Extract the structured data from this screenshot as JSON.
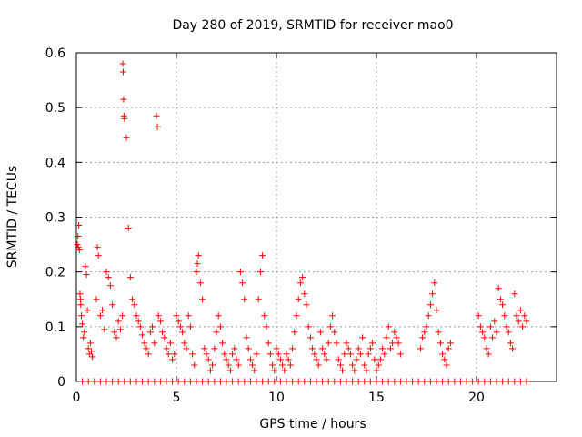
{
  "chart_data": {
    "type": "scatter",
    "title": "Day 280 of 2019, SRMTID for receiver mao0",
    "xlabel": "GPS time / hours",
    "ylabel": "SRMTID / TECUs",
    "xlim": [
      0,
      24
    ],
    "ylim": [
      0,
      0.6
    ],
    "xticks": [
      "0",
      "5",
      "10",
      "15",
      "20"
    ],
    "xtick_values": [
      0,
      5,
      10,
      15,
      20
    ],
    "yticks": [
      "0",
      "0.1",
      "0.2",
      "0.3",
      "0.4",
      "0.5",
      "0.6"
    ],
    "ytick_values": [
      0,
      0.1,
      0.2,
      0.3,
      0.4,
      0.5,
      0.6
    ],
    "grid": true,
    "marker": "+",
    "color": "#ff0000",
    "series": [
      {
        "name": "SRMTID",
        "x": [
          0.05,
          0.08,
          0.1,
          0.12,
          0.15,
          0.18,
          0.2,
          0.22,
          0.25,
          0.3,
          0.35,
          0.4,
          0.45,
          0.5,
          0.55,
          0.6,
          0.65,
          0.7,
          0.75,
          0.8,
          1.0,
          1.05,
          1.1,
          1.2,
          1.3,
          1.4,
          1.5,
          1.6,
          1.7,
          1.8,
          1.9,
          2.0,
          2.1,
          2.2,
          2.3,
          2.32,
          2.34,
          2.36,
          2.38,
          2.4,
          2.5,
          2.6,
          2.7,
          2.8,
          2.9,
          3.0,
          3.1,
          3.2,
          3.3,
          3.4,
          3.5,
          3.6,
          3.7,
          3.8,
          3.9,
          4.0,
          4.05,
          4.1,
          4.2,
          4.3,
          4.4,
          4.5,
          4.6,
          4.7,
          4.8,
          4.9,
          5.0,
          5.1,
          5.2,
          5.3,
          5.4,
          5.5,
          5.6,
          5.7,
          5.8,
          5.9,
          6.0,
          6.05,
          6.1,
          6.2,
          6.3,
          6.4,
          6.5,
          6.6,
          6.7,
          6.8,
          6.9,
          7.0,
          7.1,
          7.2,
          7.3,
          7.4,
          7.5,
          7.6,
          7.7,
          7.8,
          7.9,
          8.0,
          8.1,
          8.2,
          8.3,
          8.4,
          8.5,
          8.6,
          8.7,
          8.8,
          8.9,
          9.0,
          9.1,
          9.2,
          9.3,
          9.4,
          9.5,
          9.6,
          9.7,
          9.8,
          9.9,
          10.0,
          10.1,
          10.2,
          10.3,
          10.4,
          10.5,
          10.6,
          10.7,
          10.8,
          10.9,
          11.0,
          11.1,
          11.2,
          11.3,
          11.4,
          11.5,
          11.6,
          11.7,
          11.8,
          11.9,
          12.0,
          12.1,
          12.2,
          12.3,
          12.4,
          12.5,
          12.6,
          12.7,
          12.8,
          12.9,
          13.0,
          13.1,
          13.2,
          13.3,
          13.4,
          13.5,
          13.6,
          13.7,
          13.8,
          13.9,
          14.0,
          14.1,
          14.2,
          14.3,
          14.4,
          14.5,
          14.6,
          14.7,
          14.8,
          14.9,
          15.0,
          15.1,
          15.2,
          15.3,
          15.4,
          15.5,
          15.6,
          15.7,
          15.8,
          15.9,
          16.0,
          16.1,
          16.2,
          17.2,
          17.3,
          17.4,
          17.5,
          17.6,
          17.7,
          17.8,
          17.9,
          18.0,
          18.1,
          18.2,
          18.3,
          18.4,
          18.5,
          18.6,
          18.7,
          20.1,
          20.2,
          20.3,
          20.4,
          20.5,
          20.6,
          20.7,
          20.8,
          20.9,
          21.0,
          21.1,
          21.2,
          21.3,
          21.4,
          21.5,
          21.6,
          21.7,
          21.8,
          21.9,
          22.0,
          22.1,
          22.2,
          22.3,
          22.4,
          22.5,
          0.3,
          0.6,
          0.9,
          1.2,
          1.5,
          1.8,
          2.1,
          2.4,
          2.7,
          3.0,
          3.3,
          3.6,
          3.9,
          4.2,
          4.5,
          4.8,
          5.1,
          5.4,
          5.7,
          6.0,
          6.3,
          6.6,
          6.9,
          7.2,
          7.5,
          7.8,
          8.1,
          8.4,
          8.7,
          9.0,
          9.3,
          9.6,
          9.9,
          10.2,
          10.5,
          10.8,
          11.1,
          11.4,
          11.7,
          12.0,
          12.3,
          12.6,
          12.9,
          13.2,
          13.5,
          13.8,
          14.1,
          14.4,
          14.7,
          15.0,
          15.3,
          15.6,
          15.9,
          16.2,
          16.5,
          16.8,
          17.1,
          17.4,
          17.7,
          18.0,
          18.3,
          18.6,
          18.9,
          19.2,
          19.5,
          19.8,
          20.1,
          20.4,
          20.7,
          21.0,
          21.3,
          21.6,
          21.9,
          22.2,
          22.5
        ],
        "y": [
          0.25,
          0.265,
          0.245,
          0.285,
          0.24,
          0.16,
          0.15,
          0.14,
          0.12,
          0.105,
          0.08,
          0.09,
          0.21,
          0.195,
          0.13,
          0.06,
          0.05,
          0.07,
          0.055,
          0.045,
          0.15,
          0.245,
          0.23,
          0.12,
          0.13,
          0.095,
          0.2,
          0.19,
          0.175,
          0.14,
          0.09,
          0.08,
          0.11,
          0.095,
          0.12,
          0.58,
          0.565,
          0.515,
          0.485,
          0.48,
          0.445,
          0.28,
          0.19,
          0.15,
          0.14,
          0.12,
          0.11,
          0.1,
          0.085,
          0.07,
          0.06,
          0.05,
          0.09,
          0.1,
          0.07,
          0.485,
          0.465,
          0.12,
          0.11,
          0.09,
          0.08,
          0.06,
          0.05,
          0.07,
          0.04,
          0.05,
          0.12,
          0.11,
          0.1,
          0.09,
          0.07,
          0.06,
          0.12,
          0.1,
          0.05,
          0.03,
          0.2,
          0.215,
          0.23,
          0.18,
          0.15,
          0.06,
          0.05,
          0.04,
          0.02,
          0.03,
          0.06,
          0.09,
          0.12,
          0.1,
          0.07,
          0.05,
          0.04,
          0.03,
          0.02,
          0.05,
          0.06,
          0.04,
          0.03,
          0.2,
          0.18,
          0.15,
          0.08,
          0.06,
          0.04,
          0.03,
          0.02,
          0.05,
          0.15,
          0.2,
          0.23,
          0.12,
          0.1,
          0.07,
          0.05,
          0.03,
          0.02,
          0.06,
          0.05,
          0.04,
          0.03,
          0.02,
          0.05,
          0.04,
          0.03,
          0.06,
          0.09,
          0.12,
          0.15,
          0.18,
          0.19,
          0.16,
          0.14,
          0.1,
          0.08,
          0.06,
          0.05,
          0.04,
          0.03,
          0.09,
          0.06,
          0.05,
          0.04,
          0.07,
          0.1,
          0.12,
          0.09,
          0.07,
          0.04,
          0.03,
          0.02,
          0.05,
          0.07,
          0.06,
          0.05,
          0.03,
          0.02,
          0.04,
          0.06,
          0.05,
          0.08,
          0.03,
          0.02,
          0.05,
          0.06,
          0.07,
          0.04,
          0.02,
          0.03,
          0.04,
          0.06,
          0.05,
          0.08,
          0.1,
          0.06,
          0.07,
          0.09,
          0.08,
          0.07,
          0.05,
          0.06,
          0.08,
          0.09,
          0.1,
          0.12,
          0.14,
          0.16,
          0.18,
          0.13,
          0.09,
          0.07,
          0.05,
          0.04,
          0.03,
          0.06,
          0.07,
          0.12,
          0.1,
          0.09,
          0.08,
          0.06,
          0.05,
          0.1,
          0.08,
          0.11,
          0.09,
          0.17,
          0.15,
          0.14,
          0.12,
          0.1,
          0.09,
          0.07,
          0.06,
          0.16,
          0.12,
          0.11,
          0.13,
          0.1,
          0.12,
          0.11,
          0.0,
          0.0,
          0.0,
          0.0,
          0.0,
          0.0,
          0.0,
          0.0,
          0.0,
          0.0,
          0.0,
          0.0,
          0.0,
          0.0,
          0.0,
          0.0,
          0.0,
          0.0,
          0.0,
          0.0,
          0.0,
          0.0,
          0.0,
          0.0,
          0.0,
          0.0,
          0.0,
          0.0,
          0.0,
          0.0,
          0.0,
          0.0,
          0.0,
          0.0,
          0.0,
          0.0,
          0.0,
          0.0,
          0.0,
          0.0,
          0.0,
          0.0,
          0.0,
          0.0,
          0.0,
          0.0,
          0.0,
          0.0,
          0.0,
          0.0,
          0.0,
          0.0,
          0.0,
          0.0,
          0.0,
          0.0,
          0.0,
          0.0,
          0.0,
          0.0,
          0.0,
          0.0,
          0.0,
          0.0,
          0.0,
          0.0,
          0.0,
          0.0,
          0.0,
          0.0,
          0.0,
          0.0,
          0.0,
          0.0,
          0.0
        ]
      }
    ]
  }
}
